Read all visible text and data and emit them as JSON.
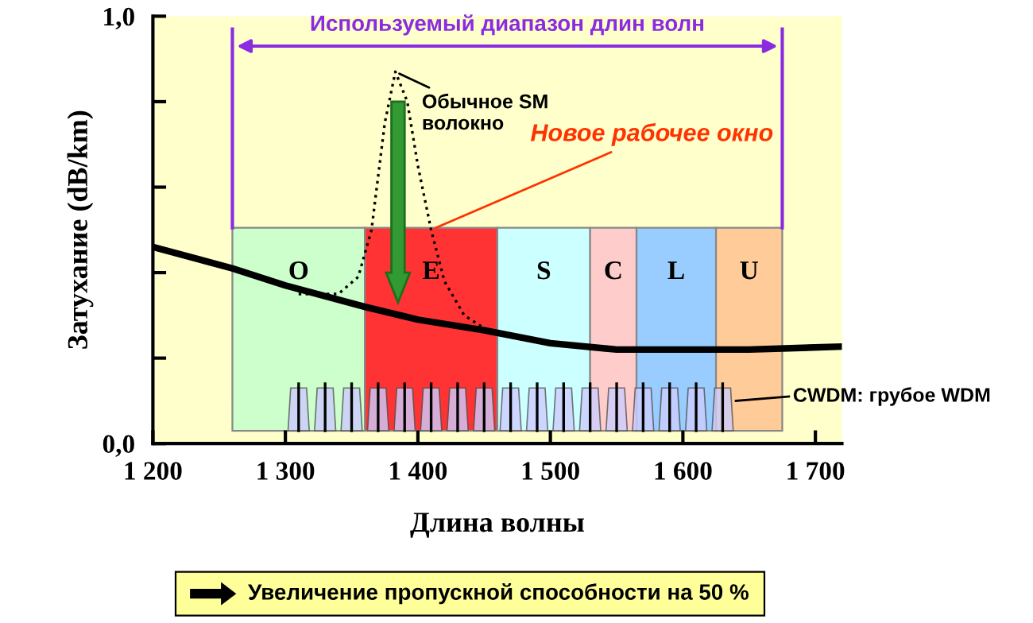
{
  "chart_data": {
    "type": "line",
    "xlabel": "Длина волны",
    "ylabel": "Затухание (dB/km)",
    "xlim": [
      1200,
      1720
    ],
    "ylim": [
      0,
      1
    ],
    "xticks": [
      {
        "value": 1200,
        "label": "1 200"
      },
      {
        "value": 1300,
        "label": "1 300"
      },
      {
        "value": 1400,
        "label": "1 400"
      },
      {
        "value": 1500,
        "label": "1 500"
      },
      {
        "value": 1600,
        "label": "1 600"
      },
      {
        "value": 1700,
        "label": "1 700"
      }
    ],
    "yticks": [
      {
        "value": 0,
        "label": "0,0"
      },
      {
        "value": 0.2,
        "label": null
      },
      {
        "value": 0.4,
        "label": null
      },
      {
        "value": 0.6,
        "label": null
      },
      {
        "value": 0.8,
        "label": null
      },
      {
        "value": 1,
        "label": "1,0"
      }
    ],
    "series": [
      {
        "color": "#000000",
        "line_style": "solid",
        "x": [
          1200,
          1260,
          1300,
          1360,
          1400,
          1450,
          1500,
          1550,
          1600,
          1650,
          1720
        ],
        "values": [
          0.46,
          0.41,
          0.37,
          0.32,
          0.29,
          0.265,
          0.235,
          0.22,
          0.22,
          0.22,
          0.227
        ]
      },
      {
        "color": "#000000",
        "line_style": "dotted",
        "x": [
          1310,
          1340,
          1355,
          1365,
          1375,
          1383,
          1392,
          1400,
          1410,
          1420,
          1435,
          1450
        ],
        "values": [
          0.35,
          0.35,
          0.39,
          0.5,
          0.75,
          0.87,
          0.8,
          0.65,
          0.5,
          0.38,
          0.3,
          0.27
        ]
      }
    ],
    "bands": [
      {
        "axis": "x",
        "from": 1260,
        "to": 1360,
        "label": "O",
        "color": "#ccffcc"
      },
      {
        "axis": "x",
        "from": 1360,
        "to": 1460,
        "label": "E",
        "color": "#ff3333"
      },
      {
        "axis": "x",
        "from": 1460,
        "to": 1530,
        "label": "S",
        "color": "#ccffff"
      },
      {
        "axis": "x",
        "from": 1530,
        "to": 1565,
        "label": "C",
        "color": "#ffcccc"
      },
      {
        "axis": "x",
        "from": 1565,
        "to": 1625,
        "label": "L",
        "color": "#99ccff"
      },
      {
        "axis": "x",
        "from": 1625,
        "to": 1675,
        "label": "U",
        "color": "#ffcc99"
      }
    ],
    "annotations": [
      "Используемый диапазон длин волн",
      {
        "text": "Обычное SM\nволокно",
        "x": 1383,
        "y": 0.87
      },
      {
        "text": "Новое рабочее окно",
        "x": 1410,
        "y": 0.5
      },
      "CWDM: грубое WDM",
      "Увеличение пропускной способности на 50 %"
    ],
    "grid": false
  }
}
